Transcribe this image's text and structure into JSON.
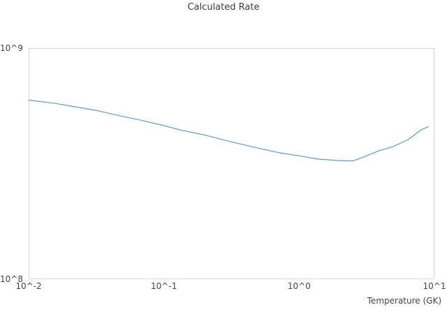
{
  "title": "Calculated Rate",
  "chart_data": {
    "type": "line",
    "title": "Calculated Rate",
    "xlabel": "Temperature (GK)",
    "ylabel": "",
    "x_scale": "log",
    "y_scale": "log",
    "xlim": [
      0.01,
      10
    ],
    "ylim": [
      100000000.0,
      1000000000.0
    ],
    "grid": false,
    "legend": "none",
    "line_color": "#5b9bd5",
    "x_ticks": [
      {
        "value": 0.01,
        "label": "10^-2"
      },
      {
        "value": 0.1,
        "label": "10^-1"
      },
      {
        "value": 1,
        "label": "10^0"
      },
      {
        "value": 10,
        "label": "10^1"
      }
    ],
    "y_ticks": [
      {
        "value": 100000000.0,
        "label": "10^8"
      },
      {
        "value": 1000000000.0,
        "label": "10^9"
      }
    ],
    "x": [
      0.01,
      0.016,
      0.02,
      0.032,
      0.05,
      0.066,
      0.1,
      0.135,
      0.2,
      0.316,
      0.5,
      0.72,
      1.0,
      1.36,
      2.0,
      2.5,
      3.0,
      3.9,
      4.9,
      6.4,
      7.9,
      9.0
    ],
    "y": [
      596000000.0,
      576000000.0,
      563000000.0,
      537000000.0,
      506000000.0,
      489000000.0,
      462000000.0,
      441000000.0,
      421000000.0,
      393000000.0,
      369000000.0,
      352000000.0,
      342000000.0,
      331000000.0,
      326000000.0,
      325000000.0,
      338000000.0,
      360000000.0,
      374000000.0,
      402000000.0,
      442000000.0,
      457000000.0
    ]
  }
}
